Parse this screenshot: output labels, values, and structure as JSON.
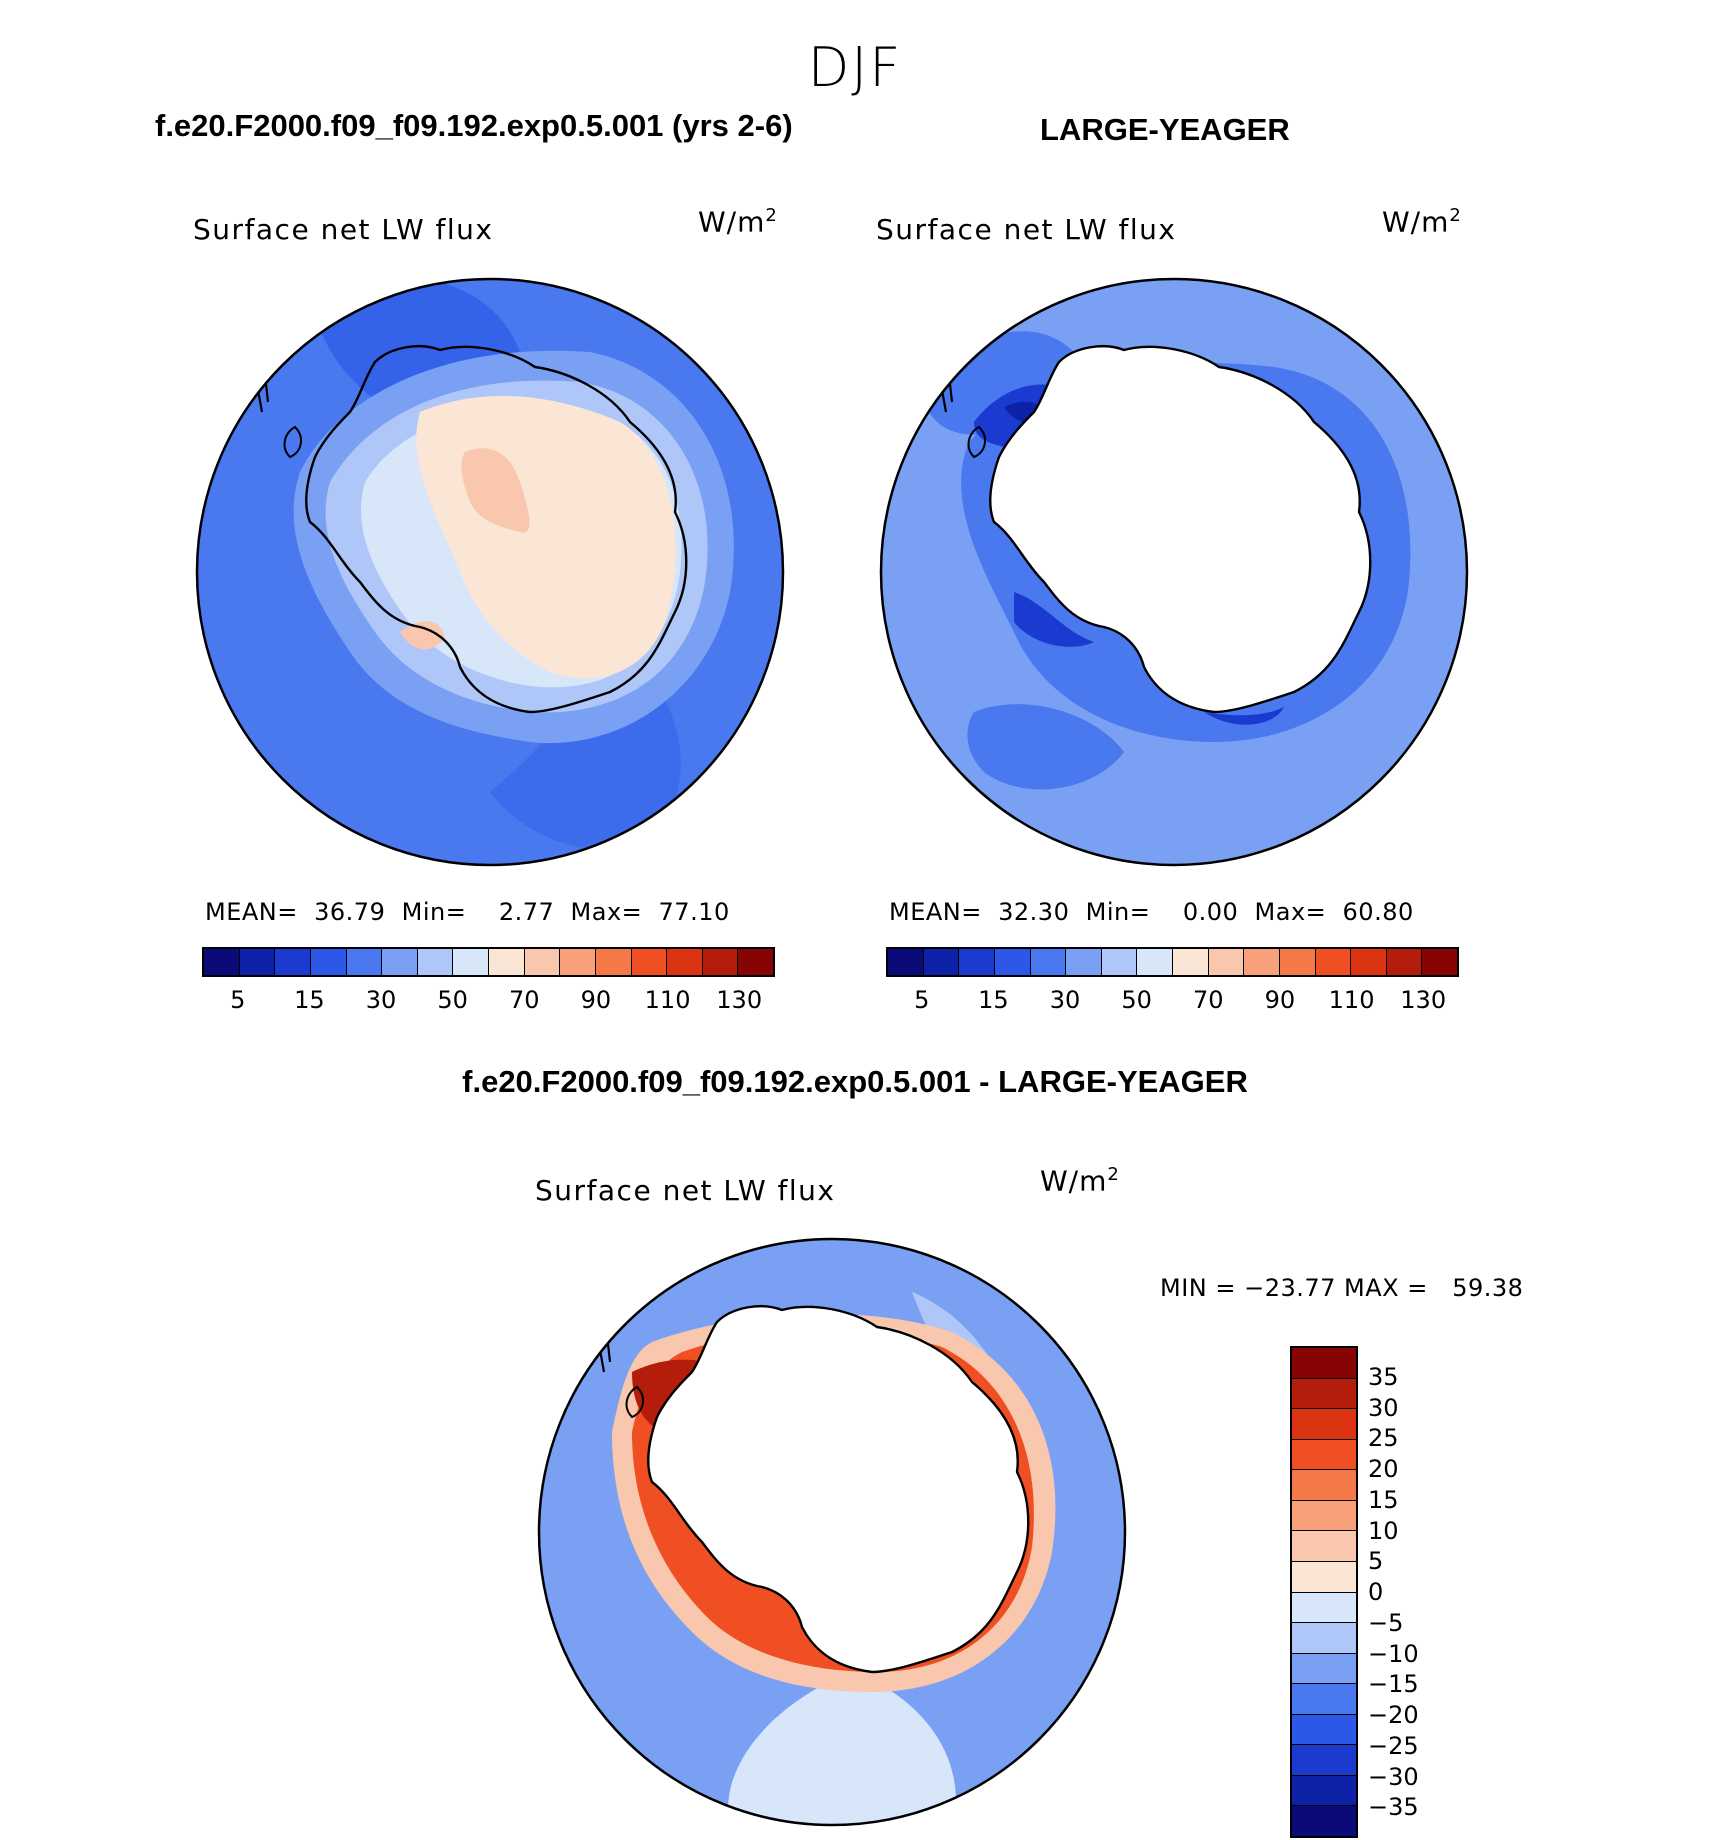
{
  "figure": {
    "season": "DJF",
    "left_title": "f.e20.F2000.f09_f09.192.exp0.5.001 (yrs 2-6)",
    "right_title": "LARGE-YEAGER",
    "diff_title": "f.e20.F2000.f09_f09.192.exp0.5.001 - LARGE-YEAGER"
  },
  "panels": {
    "left": {
      "variable": "Surface net LW flux",
      "units_base": "W/m",
      "units_exp": "2",
      "mean_label": "MEAN=",
      "mean": "36.79",
      "min_label": "Min=",
      "min": "2.77",
      "max_label": "Max=",
      "max": "77.10"
    },
    "right": {
      "variable": "Surface net LW flux",
      "units_base": "W/m",
      "units_exp": "2",
      "mean_label": "MEAN=",
      "mean": "32.30",
      "min_label": "Min=",
      "min": "0.00",
      "max_label": "Max=",
      "max": "60.80"
    },
    "diff": {
      "variable": "Surface net LW flux",
      "units_base": "W/m",
      "units_exp": "2",
      "minmax": "MIN = −23.77 MAX =   59.38"
    }
  },
  "colorbars": {
    "abs_colors": [
      "#0a0a78",
      "#0e22a8",
      "#1a3ad0",
      "#2d57e6",
      "#4a78ee",
      "#7aa0f4",
      "#aec6f8",
      "#d8e6fa",
      "#fbe6d6",
      "#f9c7ad",
      "#f7a07a",
      "#f47848",
      "#ef4f22",
      "#dc3412",
      "#b41c0c",
      "#860404"
    ],
    "abs_ticks": [
      "5",
      "15",
      "30",
      "50",
      "70",
      "90",
      "110",
      "130"
    ],
    "diff_colors": [
      "#860404",
      "#b41c0c",
      "#dc3412",
      "#ef4f22",
      "#f47848",
      "#f7a07a",
      "#f9c7ad",
      "#fbe6d6",
      "#d8e6fa",
      "#aec6f8",
      "#7aa0f4",
      "#4a78ee",
      "#2d57e6",
      "#1a3ad0",
      "#0e22a8",
      "#0a0a78"
    ],
    "diff_ticks": [
      "35",
      "30",
      "25",
      "20",
      "15",
      "10",
      "5",
      "0",
      "−5",
      "−10",
      "−15",
      "−20",
      "−25",
      "−30",
      "−35"
    ]
  },
  "map_colors": {
    "ocean_deep": "#4a78ee",
    "ocean_mid": "#5d86f0",
    "ocean_light": "#7aa0f4",
    "ice_light": "#aec6f8",
    "ice_pale": "#d8e6fa",
    "land_warm": "#fbe6d6",
    "land_peach": "#f9c7ad",
    "blue_dark": "#1a3ad0",
    "blue_navy": "#0e22a8",
    "red_dark": "#b41c0c",
    "red_mid": "#ef4f22",
    "red_light": "#f7a07a"
  }
}
